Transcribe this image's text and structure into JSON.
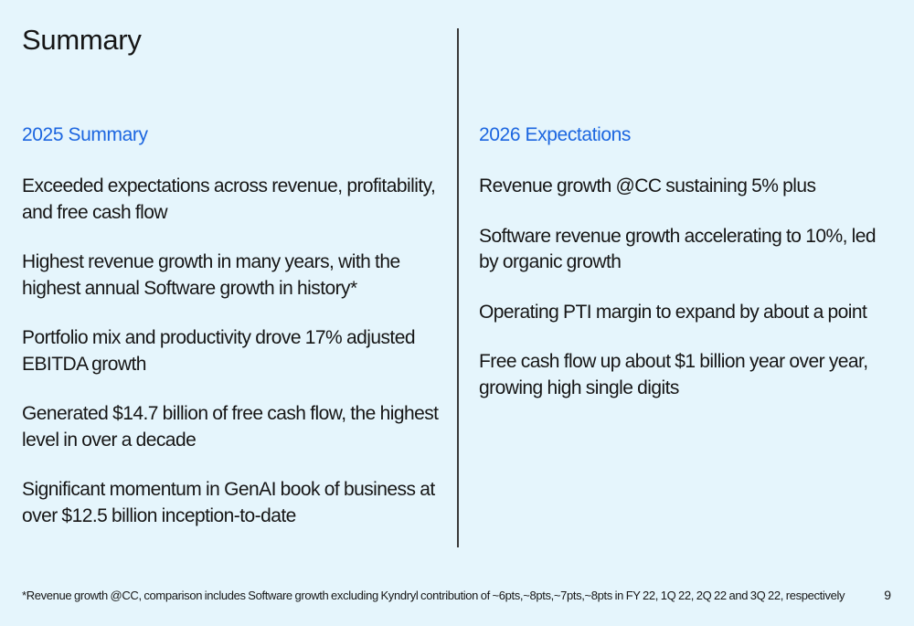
{
  "slide": {
    "title": "Summary",
    "footnote": "*Revenue growth @CC, comparison includes Software growth excluding Kyndryl contribution of ~6pts,~8pts,~7pts,~8pts in FY 22, 1Q 22, 2Q 22 and 3Q 22, respectively",
    "page_number": "9"
  },
  "left_column": {
    "heading": "2025 Summary",
    "items": [
      "Exceeded expectations across revenue, profitability, and free cash flow",
      "Highest revenue growth in many years, with the highest annual Software growth in history*",
      "Portfolio mix and productivity drove 17% adjusted EBITDA growth",
      "Generated $14.7 billion of free cash flow, the highest level in over a decade",
      "Significant momentum in GenAI book of business at over $12.5 billion inception-to-date"
    ]
  },
  "right_column": {
    "heading": "2026 Expectations",
    "items": [
      "Revenue growth @CC sustaining 5% plus",
      "Software revenue growth accelerating to 10%, led by organic growth",
      "Operating PTI margin to expand by about a point",
      "Free cash flow up about $1 billion year over year, growing high single digits"
    ]
  },
  "colors": {
    "background": "#e5f5fc",
    "heading_accent": "#1c66e0",
    "text": "#161616",
    "divider": "#3a3a3a"
  }
}
